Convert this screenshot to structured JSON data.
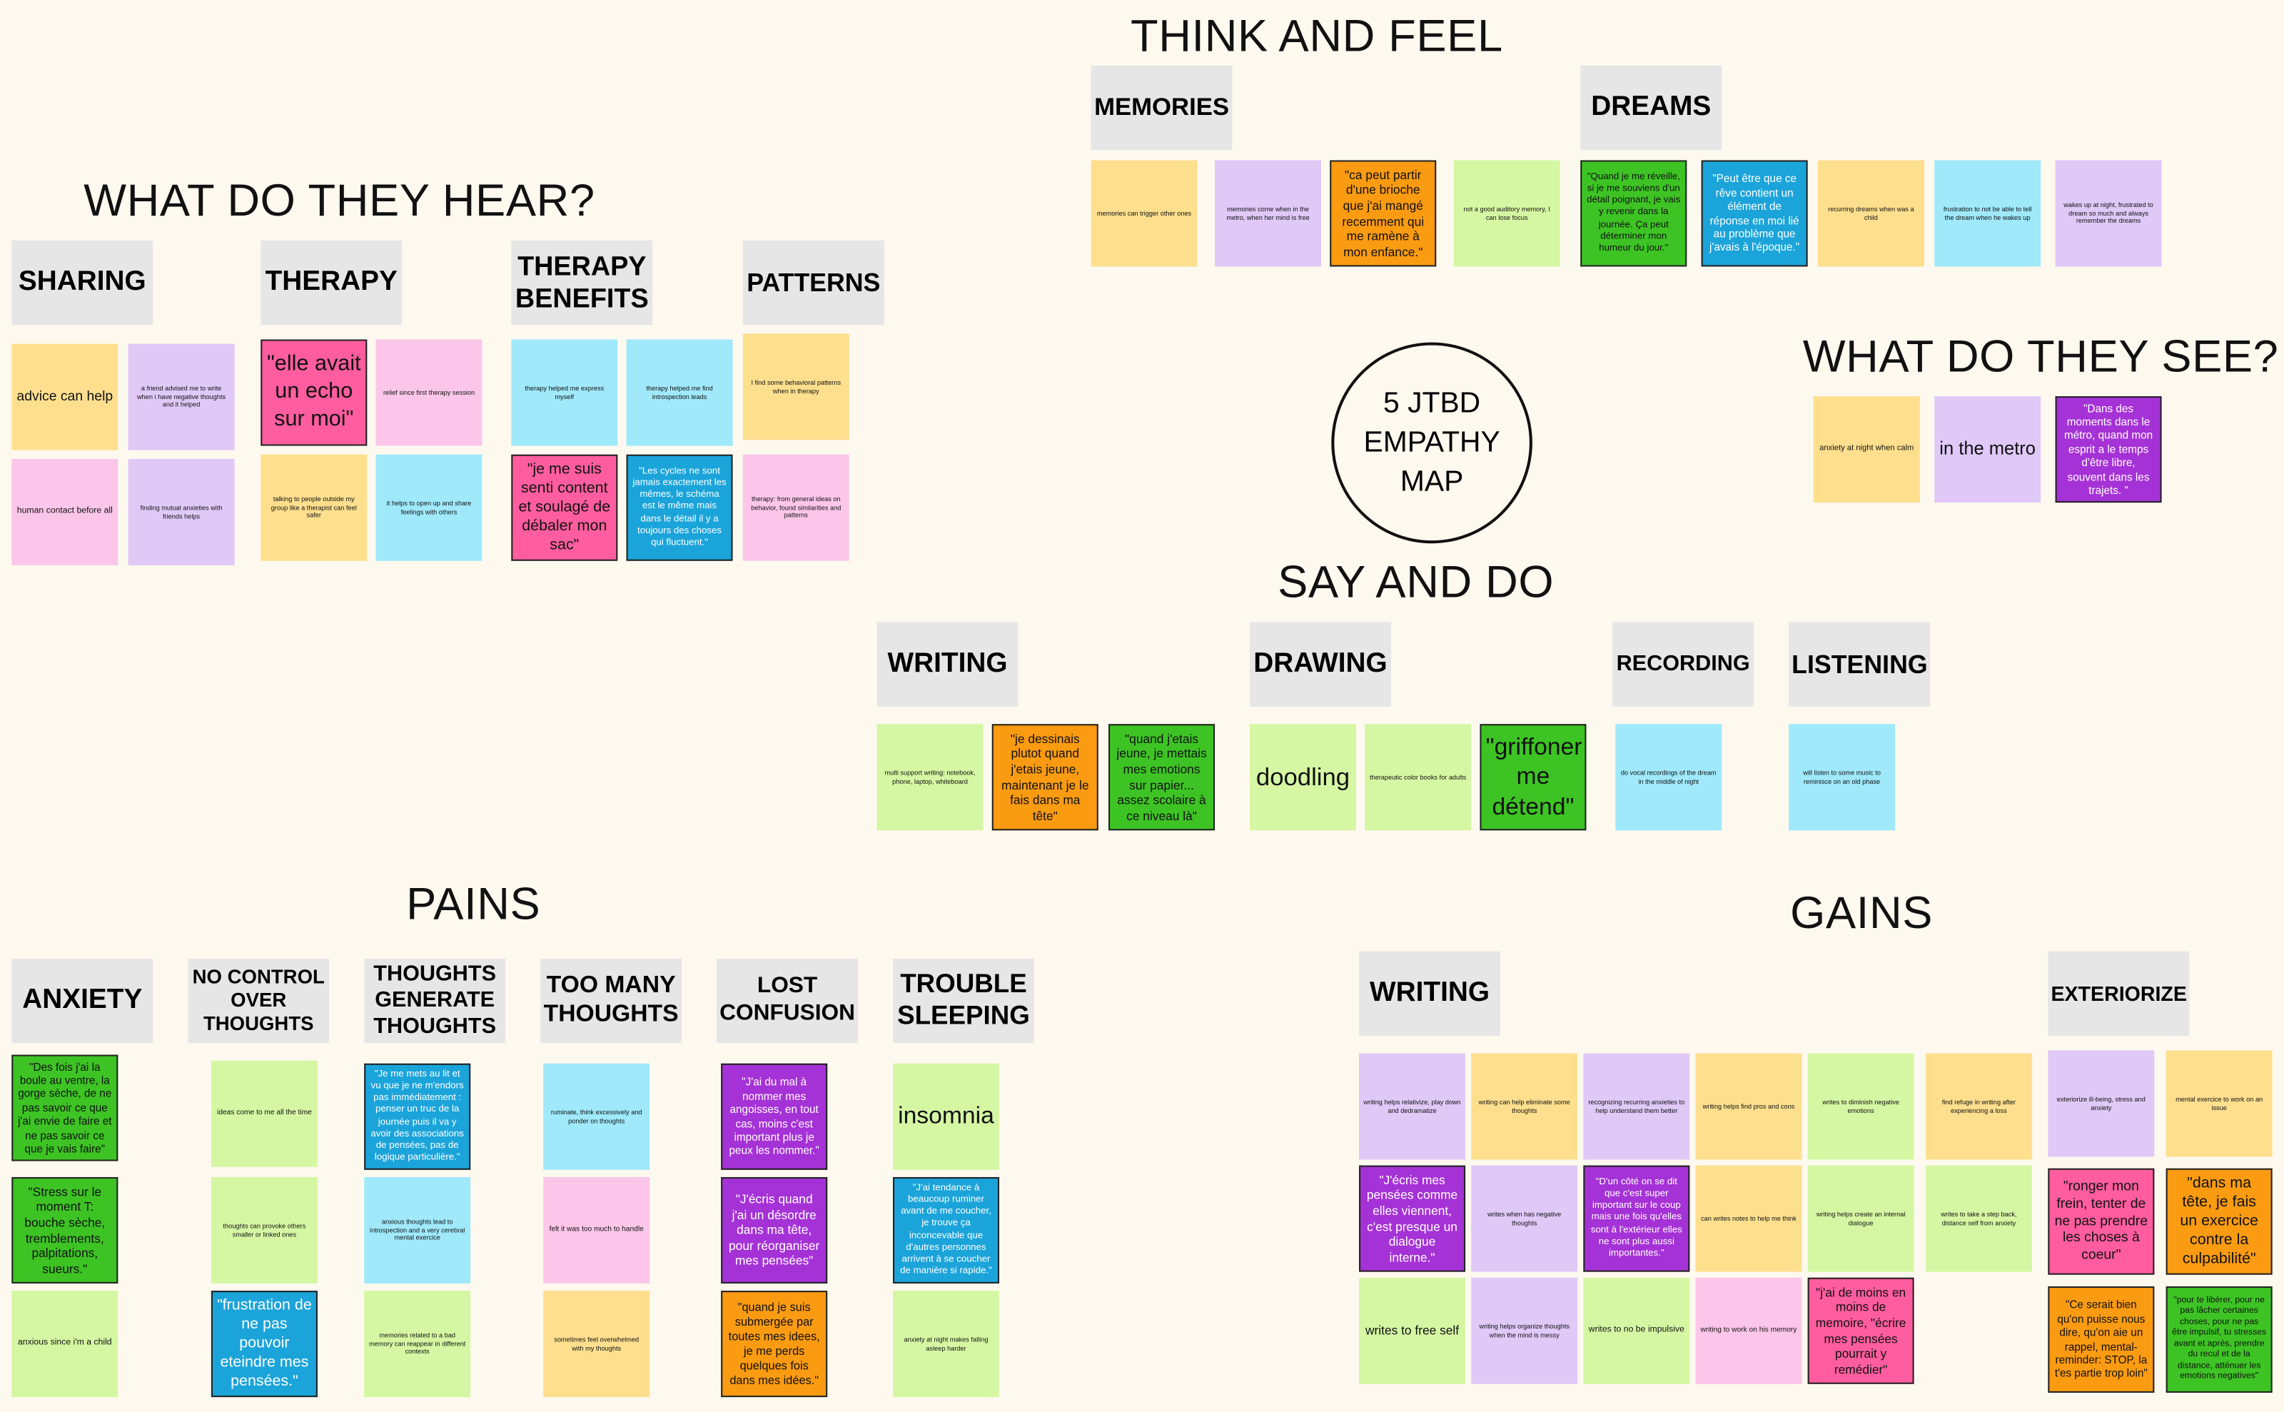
{
  "title": "5 JTBD EMPATHY MAP",
  "sections": [
    {
      "title": "THINK AND FEEL",
      "groups": [
        {
          "header": "MEMORIES",
          "notes": [
            {
              "text": "memories can trigger other ones",
              "color": "yellow"
            },
            {
              "text": "memories come when in the metro, when her mind is free",
              "color": "lavender"
            },
            {
              "text": "\"ca peut partir d'une brioche que j'ai mangé recemment qui me ramène à mon enfance.\"",
              "color": "orange"
            },
            {
              "text": "not a good auditory memory, I can lose focus",
              "color": "lightgreen"
            }
          ]
        },
        {
          "header": "DREAMS",
          "notes": [
            {
              "text": "\"Quand je me réveille, si je me souviens d'un détail poignant, je vais y revenir dans la journée. Ça peut déterminer mon humeur du jour.\"",
              "color": "green"
            },
            {
              "text": "\"Peut être que ce rêve contient un élément de réponse en moi lié au problème que j'avais à l'époque.\"",
              "color": "blue"
            },
            {
              "text": "recurring dreams when was a child",
              "color": "yellow"
            },
            {
              "text": "frustration to not be able to tell the dream when he wakes up",
              "color": "cyan"
            },
            {
              "text": "wakes up at night, frustrated to dream so much and always remember the dreams",
              "color": "lavender"
            }
          ]
        }
      ]
    },
    {
      "title": "WHAT DO THEY HEAR?",
      "groups": [
        {
          "header": "SHARING",
          "notes": [
            {
              "text": "advice can help",
              "color": "yellow"
            },
            {
              "text": "a friend advised me to write when i have negative thoughts and it helped",
              "color": "lavender"
            },
            {
              "text": "human contact before all",
              "color": "lightpink"
            },
            {
              "text": "finding mutual anxieties with friends helps",
              "color": "lavender"
            }
          ]
        },
        {
          "header": "THERAPY",
          "notes": [
            {
              "text": "\"elle avait un echo sur moi\"",
              "color": "pink"
            },
            {
              "text": "relief since first therapy session",
              "color": "lightpink"
            },
            {
              "text": "talking to people outside my group like a therapist can feel safer",
              "color": "yellow"
            },
            {
              "text": "it helps to open up and share feelings with others",
              "color": "cyan"
            }
          ]
        },
        {
          "header": "THERAPY BENEFITS",
          "notes": [
            {
              "text": "therapy helped me express myself",
              "color": "cyan"
            },
            {
              "text": "therapy helped me find introspection leads",
              "color": "cyan"
            },
            {
              "text": "\"je me suis senti content et soulagé de débaler mon sac\"",
              "color": "pink"
            },
            {
              "text": "\"Les cycles ne sont jamais exactement les mêmes, le schéma est le même mais dans le détail il y a toujours des choses qui fluctuent.\"",
              "color": "blue"
            }
          ]
        },
        {
          "header": "PATTERNS",
          "notes": [
            {
              "text": "I find some behavioral patterns when in therapy",
              "color": "yellow"
            },
            {
              "text": "therapy: from general ideas on behavior, found similarities and patterns",
              "color": "lightpink"
            }
          ]
        }
      ]
    },
    {
      "title": "WHAT DO THEY SEE?",
      "notes": [
        {
          "text": "anxiety at night when calm",
          "color": "yellow"
        },
        {
          "text": "in the metro",
          "color": "lavender"
        },
        {
          "text": "\"Dans des moments dans le métro, quand mon esprit a le temps d'être libre, souvent dans les trajets. \"",
          "color": "purple"
        }
      ]
    },
    {
      "title": "SAY AND DO",
      "groups": [
        {
          "header": "WRITING",
          "notes": [
            {
              "text": "multi support writing: notebook, phone, laptop, whiteboard",
              "color": "lightgreen"
            },
            {
              "text": "\"je dessinais plutot quand j'etais jeune, maintenant je le fais dans ma tête\"",
              "color": "orange"
            },
            {
              "text": "\"quand j'etais jeune, je mettais mes emotions sur papier... assez scolaire à ce niveau là\"",
              "color": "green"
            }
          ]
        },
        {
          "header": "DRAWING",
          "notes": [
            {
              "text": "doodling",
              "color": "lightgreen"
            },
            {
              "text": "therapeutic color books for adults",
              "color": "lightgreen"
            },
            {
              "text": "\"griffoner me détend\"",
              "color": "green"
            }
          ]
        },
        {
          "header": "RECORDING",
          "notes": [
            {
              "text": "do vocal recordings of the dream in the middle of night",
              "color": "cyan"
            }
          ]
        },
        {
          "header": "LISTENING",
          "notes": [
            {
              "text": "will listen to some music to reminisce on an old phase",
              "color": "cyan"
            }
          ]
        }
      ]
    },
    {
      "title": "PAINS",
      "groups": [
        {
          "header": "ANXIETY",
          "notes": [
            {
              "text": "\"Des fois j'ai la boule au ventre, la gorge sèche, de ne pas savoir ce que j'ai envie de faire et ne pas savoir ce que je vais faire\"",
              "color": "green"
            },
            {
              "text": "\"Stress sur le moment T: bouche sèche, tremblements, palpitations, sueurs.\"",
              "color": "green"
            },
            {
              "text": "anxious since i'm a child",
              "color": "lightgreen"
            }
          ]
        },
        {
          "header": "NO CONTROL OVER THOUGHTS",
          "notes": [
            {
              "text": "ideas come to me all the time",
              "color": "lightgreen"
            },
            {
              "text": "thoughts can provoke others smaller or linked ones",
              "color": "lightgreen"
            },
            {
              "text": "\"frustration de ne pas pouvoir eteindre mes pensées.\"",
              "color": "blue"
            }
          ]
        },
        {
          "header": "THOUGHTS GENERATE THOUGHTS",
          "notes": [
            {
              "text": "\"Je me mets au lit et vu que je ne m'endors pas immédiatement : penser un truc de la journée puis il va y avoir des associations de pensées, pas de logique particulière.\"",
              "color": "blue"
            },
            {
              "text": "anxious thoughts lead to introspection and a very cerebral mental exercice",
              "color": "cyan"
            },
            {
              "text": "memories related to a bad memory can reappear in different contexts",
              "color": "lightgreen"
            }
          ]
        },
        {
          "header": "TOO MANY THOUGHTS",
          "notes": [
            {
              "text": "ruminate, think excessively and ponder on thoughts",
              "color": "cyan"
            },
            {
              "text": "felt it was too much to handle",
              "color": "lightpink"
            },
            {
              "text": "sometimes feel overwhelmed with my thoughts",
              "color": "yellow"
            }
          ]
        },
        {
          "header": "LOST CONFUSION",
          "notes": [
            {
              "text": "\"J'ai du mal à nommer mes angoisses, en tout cas, moins c'est important plus je peux les nommer.\"",
              "color": "purple"
            },
            {
              "text": "\"J'écris quand j'ai un désordre dans ma tête, pour réorganiser mes pensées\"",
              "color": "purple"
            },
            {
              "text": "\"quand je suis submergée par toutes mes idees, je me perds quelques fois dans mes idées.\"",
              "color": "orange"
            }
          ]
        },
        {
          "header": "TROUBLE SLEEPING",
          "notes": [
            {
              "text": "insomnia",
              "color": "lightgreen"
            },
            {
              "text": "\"J'ai tendance à beaucoup ruminer avant de me coucher, je trouve ça inconcevable que d'autres personnes arrivent à se coucher de manière si rapide.\"",
              "color": "blue"
            },
            {
              "text": "anxiety at night makes falling asleep harder",
              "color": "lightgreen"
            }
          ]
        }
      ]
    },
    {
      "title": "GAINS",
      "groups": [
        {
          "header": "WRITING",
          "notes": [
            {
              "text": "writing helps relativize, play down and dedramatize",
              "color": "lavender"
            },
            {
              "text": "\"J'écris mes pensées comme elles viennent, c'est presque un dialogue interne.\"",
              "color": "purple"
            },
            {
              "text": "writes to free self",
              "color": "lightgreen"
            },
            {
              "text": "writing can help eliminate some thoughts",
              "color": "yellow"
            },
            {
              "text": "writes when has negative thoughts",
              "color": "lavender"
            },
            {
              "text": "writing helps organize thoughts when the mind is messy",
              "color": "lavender"
            },
            {
              "text": "recognizing recurring anxieties to help understand them better",
              "color": "lavender"
            },
            {
              "text": "\"D'un côté on se dit que c'est super important sur le coup mais une fois qu'elles sont à l'extérieur elles ne sont plus aussi importantes.\"",
              "color": "purple"
            },
            {
              "text": "writes to no be impulsive",
              "color": "lightgreen"
            },
            {
              "text": "writing helps find pros and cons",
              "color": "yellow"
            },
            {
              "text": "can writes notes to help me think",
              "color": "yellow"
            },
            {
              "text": "writing to work on his memory",
              "color": "lightpink"
            },
            {
              "text": "writes to diminish negative emotions",
              "color": "lightgreen"
            },
            {
              "text": "writing helps create an internal dialogue",
              "color": "lightgreen"
            },
            {
              "text": "\"j'ai de moins en moins de memoire, \"écrire mes pensées pourrait y remédier\"",
              "color": "pink"
            },
            {
              "text": "find refuge in writing after experiencing a loss",
              "color": "yellow"
            },
            {
              "text": "writes to take a step back, distance self from anxiety",
              "color": "lightgreen"
            }
          ]
        },
        {
          "header": "EXTERIORIZE",
          "notes": [
            {
              "text": "exteriorize ill-being, stress and anxiety",
              "color": "lavender"
            },
            {
              "text": "\"ronger mon frein, tenter de ne pas prendre les choses à coeur\"",
              "color": "pink"
            },
            {
              "text": "\"Ce serait bien qu'on puisse nous dire, qu'on aie un rappel, mental-reminder: STOP, la t'es partie trop loin\"",
              "color": "orange"
            },
            {
              "text": "mental exercice to work on an issue",
              "color": "yellow"
            },
            {
              "text": "\"dans ma tête, je fais un exercice contre la culpabilité\"",
              "color": "orange"
            },
            {
              "text": "\"pour te libérer, pour ne pas lâcher certaines choses, pour ne pas être impulsif, tu stresses avant et après, prendre du recul et de la distance, atténuer les emotions negatives\"",
              "color": "green"
            }
          ]
        }
      ]
    }
  ]
}
